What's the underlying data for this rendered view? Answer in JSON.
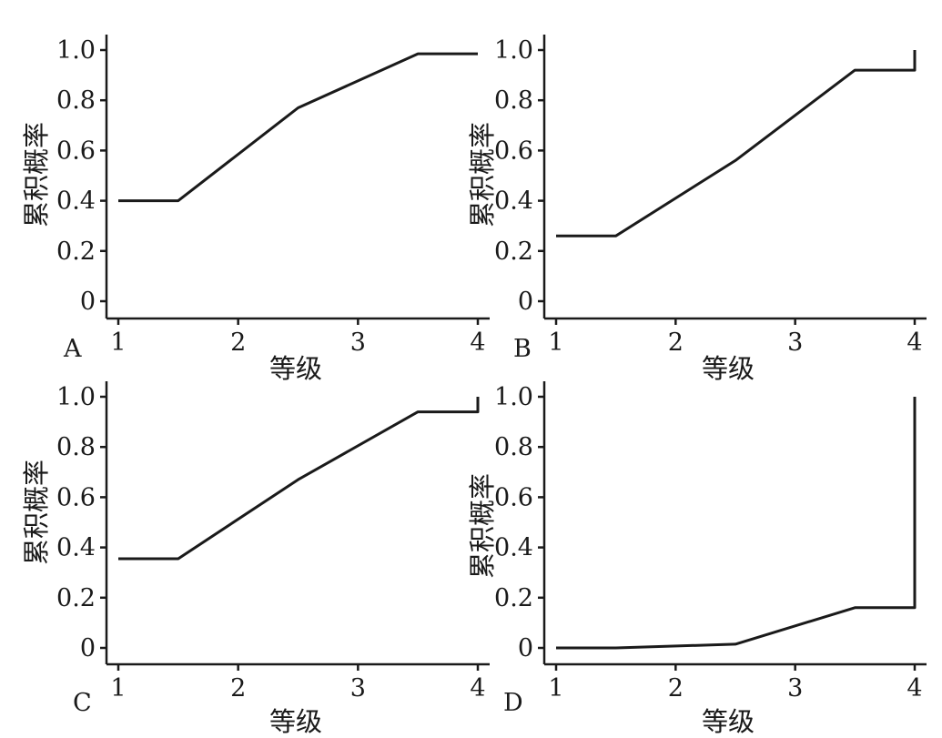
{
  "chart_data": [
    {
      "type": "line",
      "panel_label": "A",
      "xlabel": "等级",
      "ylabel": "累积概率",
      "x_ticks": [
        "1",
        "2",
        "3",
        "4"
      ],
      "y_ticks": [
        "0",
        "0.2",
        "0.4",
        "0.6",
        "0.8",
        "1.0"
      ],
      "xlim": [
        1,
        4
      ],
      "ylim": [
        0,
        1
      ],
      "grid": false,
      "x": [
        1,
        1.5,
        2.5,
        3.5,
        4
      ],
      "y": [
        0.4,
        0.4,
        0.77,
        0.985,
        0.985
      ]
    },
    {
      "type": "line",
      "panel_label": "B",
      "xlabel": "等级",
      "ylabel": "累积概率",
      "x_ticks": [
        "1",
        "2",
        "3",
        "4"
      ],
      "y_ticks": [
        "0",
        "0.2",
        "0.4",
        "0.6",
        "0.8",
        "1.0"
      ],
      "xlim": [
        1,
        4
      ],
      "ylim": [
        0,
        1
      ],
      "grid": false,
      "x": [
        1,
        1.5,
        2.5,
        3.5,
        4,
        4
      ],
      "y": [
        0.26,
        0.26,
        0.56,
        0.92,
        0.92,
        1.0
      ]
    },
    {
      "type": "line",
      "panel_label": "C",
      "xlabel": "等级",
      "ylabel": "累积概率",
      "x_ticks": [
        "1",
        "2",
        "3",
        "4"
      ],
      "y_ticks": [
        "0",
        "0.2",
        "0.4",
        "0.6",
        "0.8",
        "1.0"
      ],
      "xlim": [
        1,
        4
      ],
      "ylim": [
        0,
        1
      ],
      "grid": false,
      "x": [
        1,
        1.5,
        2.5,
        3.5,
        4,
        4
      ],
      "y": [
        0.355,
        0.355,
        0.67,
        0.94,
        0.94,
        1.0
      ]
    },
    {
      "type": "line",
      "panel_label": "D",
      "xlabel": "等级",
      "ylabel": "累积概率",
      "x_ticks": [
        "1",
        "2",
        "3",
        "4"
      ],
      "y_ticks": [
        "0",
        "0.2",
        "0.4",
        "0.6",
        "0.8",
        "1.0"
      ],
      "xlim": [
        1,
        4
      ],
      "ylim": [
        0,
        1
      ],
      "grid": false,
      "x": [
        1,
        1.5,
        2.5,
        3.5,
        4,
        4
      ],
      "y": [
        0.0,
        0.0,
        0.015,
        0.16,
        0.16,
        1.0
      ]
    }
  ]
}
